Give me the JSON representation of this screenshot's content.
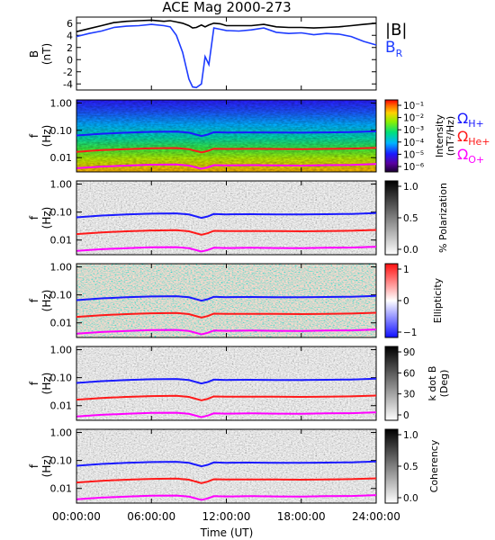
{
  "title": "ACE Mag 2000-273",
  "colors": {
    "magnitude": "#000000",
    "radial": "#1e3cff",
    "h_plus": "#1a1aff",
    "he_plus": "#ff1a1a",
    "o_plus": "#ff00ff"
  },
  "panels": [
    {
      "id": "b",
      "ylabel": "B",
      "yunit": "(nT)"
    },
    {
      "id": "spectrum",
      "ylabel": "f",
      "yunit": "(Hz)",
      "colorbar_label": "Intensity",
      "colorbar_unit": "(nT²/Hz)"
    },
    {
      "id": "polarization",
      "ylabel": "f",
      "yunit": "(Hz)",
      "colorbar_label": "% Polarization"
    },
    {
      "id": "ellipticity",
      "ylabel": "f",
      "yunit": "(Hz)",
      "colorbar_label": "Ellipticity"
    },
    {
      "id": "kdotb",
      "ylabel": "f",
      "yunit": "(Hz)",
      "colorbar_label": "k dot B",
      "colorbar_unit": "(Deg)"
    },
    {
      "id": "coherency",
      "ylabel": "f",
      "yunit": "(Hz)",
      "colorbar_label": "Coherency"
    }
  ],
  "legend_b": {
    "magnitude": "|B|",
    "radial": "B",
    "radial_sub": "R"
  },
  "legend_freq": [
    {
      "symbol": "Ω",
      "sub": "H+"
    },
    {
      "symbol": "Ω",
      "sub": "He+"
    },
    {
      "symbol": "Ω",
      "sub": "O+"
    }
  ],
  "xlabel": "Time (UT)",
  "chart_data": {
    "type": "line",
    "title": "ACE Mag 2000-273",
    "xlabel": "Time (UT)",
    "x_ticks": [
      "00:00:00",
      "06:00:00",
      "12:00:00",
      "18:00:00",
      "24:00:00"
    ],
    "xlim": [
      0,
      24
    ],
    "b_panel": {
      "ylabel": "B (nT)",
      "ylim": [
        -5,
        7
      ],
      "yticks": [
        "-4",
        "-2",
        "0",
        "2",
        "4",
        "6"
      ],
      "x": [
        0,
        1,
        2,
        3,
        4,
        5,
        6,
        7,
        7.5,
        8,
        8.5,
        9,
        9.3,
        9.6,
        10,
        10.3,
        10.6,
        11,
        11.5,
        12,
        13,
        14,
        15,
        16,
        17,
        18,
        19,
        20,
        21,
        22,
        23,
        24
      ],
      "series": [
        {
          "name": "|B|",
          "values": [
            4.6,
            5.1,
            5.6,
            6.1,
            6.3,
            6.4,
            6.5,
            6.3,
            6.4,
            6.2,
            6.0,
            5.6,
            5.2,
            5.3,
            5.7,
            5.4,
            5.7,
            6.0,
            5.9,
            5.6,
            5.6,
            5.6,
            5.8,
            5.4,
            5.3,
            5.3,
            5.2,
            5.3,
            5.4,
            5.6,
            5.8,
            6.0
          ]
        },
        {
          "name": "B R",
          "values": [
            3.8,
            4.3,
            4.7,
            5.3,
            5.5,
            5.6,
            5.8,
            5.6,
            5.4,
            4.0,
            1.2,
            -3.2,
            -4.5,
            -4.6,
            -4.0,
            0.5,
            -0.8,
            5.2,
            5.0,
            4.8,
            4.7,
            4.9,
            5.2,
            4.5,
            4.3,
            4.4,
            4.1,
            4.3,
            4.2,
            3.8,
            3.0,
            2.4
          ]
        }
      ]
    },
    "freq_panels": {
      "ylabel": "f (Hz)",
      "scale": "log",
      "ylim": [
        0.003,
        1.3
      ],
      "yticks": [
        "1.00",
        "0.10",
        "0.01"
      ],
      "x": [
        0,
        2,
        4,
        6,
        8,
        9,
        10,
        10.5,
        11,
        12,
        14,
        16,
        18,
        20,
        22,
        24
      ],
      "series": [
        {
          "name": "Ω H+",
          "values": [
            0.065,
            0.075,
            0.082,
            0.088,
            0.09,
            0.082,
            0.062,
            0.07,
            0.085,
            0.083,
            0.084,
            0.083,
            0.082,
            0.084,
            0.086,
            0.092
          ]
        },
        {
          "name": "Ω He+",
          "values": [
            0.0163,
            0.0188,
            0.0205,
            0.022,
            0.0225,
            0.0205,
            0.0155,
            0.0175,
            0.0213,
            0.0208,
            0.021,
            0.0208,
            0.0205,
            0.021,
            0.0215,
            0.023
          ]
        },
        {
          "name": "Ω O+",
          "values": [
            0.0041,
            0.0047,
            0.0051,
            0.0055,
            0.0056,
            0.0051,
            0.0039,
            0.0044,
            0.0053,
            0.0052,
            0.0053,
            0.0052,
            0.0051,
            0.0053,
            0.0054,
            0.0058
          ]
        }
      ]
    },
    "colorbars": {
      "intensity": {
        "ticks": [
          "10⁻¹",
          "10⁻²",
          "10⁻³",
          "10⁻⁴",
          "10⁻⁵",
          "10⁻⁶"
        ]
      },
      "polarization": {
        "ticks": [
          "1.0",
          "0.5",
          "0.0"
        ]
      },
      "ellipticity": {
        "ticks": [
          "1",
          "0",
          "−1"
        ]
      },
      "kdotb": {
        "ticks": [
          "90",
          "60",
          "30",
          "0"
        ]
      },
      "coherency": {
        "ticks": [
          "1.0",
          "0.5",
          "0.0"
        ]
      }
    }
  }
}
